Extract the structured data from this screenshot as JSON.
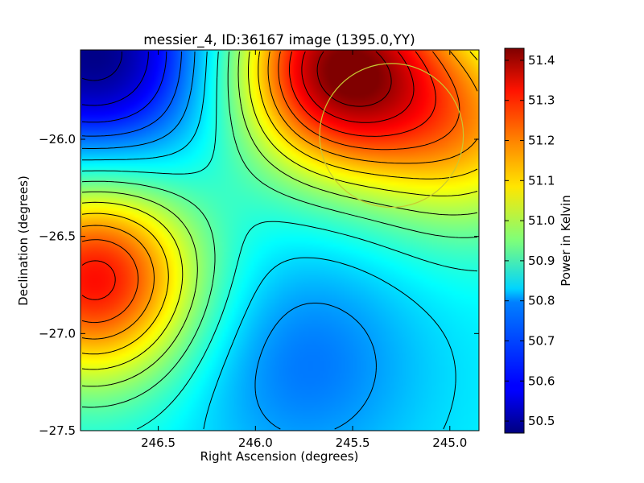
{
  "chart_data": {
    "type": "heatmap",
    "title": "messier_4, ID:36167 image (1395.0,YY)",
    "xlabel": "Right Ascension (degrees)",
    "ylabel": "Declination (degrees)",
    "colorbar_label": "Power in Kelvin",
    "xlim": [
      246.9,
      244.85
    ],
    "ylim": [
      -27.5,
      -25.54
    ],
    "x_ticks": [
      246.5,
      246.0,
      245.5,
      245.0
    ],
    "x_tick_labels": [
      "246.5",
      "246.0",
      "245.5",
      "245.0"
    ],
    "y_ticks": [
      -26.0,
      -26.5,
      -27.0,
      -27.5
    ],
    "y_tick_labels": [
      "−26.0",
      "−26.5",
      "−27.0",
      "−27.5"
    ],
    "colorbar_range": [
      50.47,
      51.43
    ],
    "colorbar_ticks": [
      50.5,
      50.6,
      50.7,
      50.8,
      50.9,
      51.0,
      51.1,
      51.2,
      51.3,
      51.4
    ],
    "colorbar_tick_labels": [
      "50.5",
      "50.6",
      "50.7",
      "50.8",
      "50.9",
      "51.0",
      "51.1",
      "51.2",
      "51.3",
      "51.4"
    ],
    "colormap": "jet",
    "contour_color": "#000000",
    "features": [
      {
        "kind": "max",
        "ra": 245.57,
        "dec": -25.63,
        "value": 51.41
      },
      {
        "kind": "max",
        "ra": 246.82,
        "dec": -26.71,
        "value": 51.31
      },
      {
        "kind": "max",
        "ra": 244.9,
        "dec": -25.95,
        "value": 51.1
      },
      {
        "kind": "min",
        "ra": 246.82,
        "dec": -25.58,
        "value": 50.47
      },
      {
        "kind": "min",
        "ra": 245.75,
        "dec": -27.15,
        "value": 50.7
      }
    ],
    "circle": {
      "ra": 245.3,
      "dec": -25.98,
      "radius_deg": 0.37,
      "color": "#c8c832"
    }
  }
}
